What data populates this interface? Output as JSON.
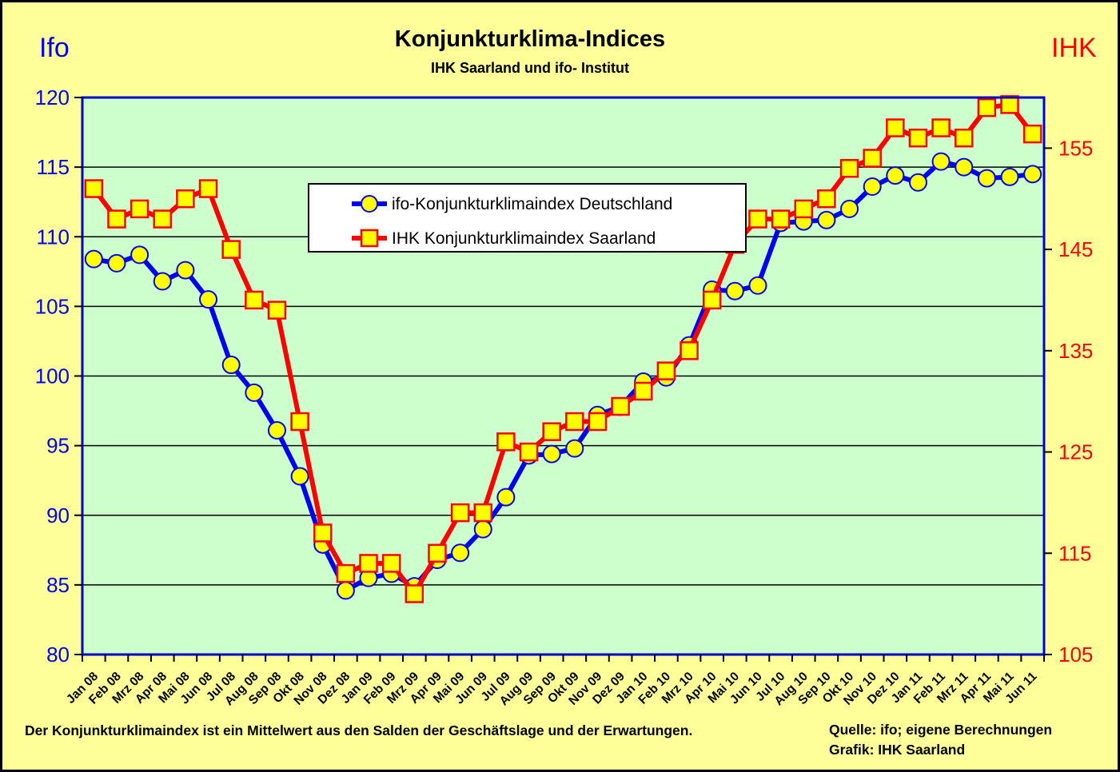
{
  "header": {
    "title": "Konjunkturklima-Indices",
    "subtitle": "IHK Saarland und ifo- Institut",
    "left_axis_title": "Ifo",
    "right_axis_title": "IHK"
  },
  "footer": {
    "note": "Der Konjunkturklimaindex ist ein Mittelwert aus den Salden der Geschäftslage und der Erwartungen.",
    "source_line1": "Quelle: ifo; eigene Berechnungen",
    "source_line2": "Grafik: IHK Saarland"
  },
  "colors": {
    "background": "#FFFF99",
    "plot_background": "#CCFFCC",
    "plot_border": "#0000CC",
    "grid": "#000000",
    "ifo_line": "#0000EE",
    "ihk_line": "#FF0000",
    "marker_fill": "#FFFF00",
    "left_axis_text": "#0000EE",
    "right_axis_text": "#FF0000",
    "legend_background": "#FFFFFF"
  },
  "chart_data": {
    "type": "line",
    "title": "Konjunkturklima-Indices",
    "subtitle": "IHK Saarland und ifo- Institut",
    "grid": "horizontal",
    "legend_position": "inside-top-center",
    "categories": [
      "Jan 08",
      "Feb 08",
      "Mrz 08",
      "Apr 08",
      "Mai 08",
      "Jun 08",
      "Jul 08",
      "Aug 08",
      "Sep 08",
      "Okt 08",
      "Nov 08",
      "Dez 08",
      "Jan 09",
      "Feb 09",
      "Mrz 09",
      "Apr 09",
      "Mai 09",
      "Jun 09",
      "Jul 09",
      "Aug 09",
      "Sep 09",
      "Okt 09",
      "Nov 09",
      "Dez 09",
      "Jan 10",
      "Feb 10",
      "Mrz 10",
      "Apr 10",
      "Mai 10",
      "Jun 10",
      "Jul 10",
      "Aug 10",
      "Sep 10",
      "Okt 10",
      "Nov 10",
      "Dez 10",
      "Jan 11",
      "Feb 11",
      "Mrz 11",
      "Apr 11",
      "Mai 11",
      "Jun 11"
    ],
    "left_axis": {
      "label": "Ifo",
      "min": 80,
      "max": 120,
      "ticks": [
        80,
        85,
        90,
        95,
        100,
        105,
        110,
        115,
        120
      ]
    },
    "right_axis": {
      "label": "IHK",
      "min": 105,
      "max": 160,
      "ticks": [
        105,
        115,
        125,
        135,
        145,
        155
      ]
    },
    "series": [
      {
        "name": "ifo-Konjunkturklimaindex Deutschland",
        "axis": "left",
        "color": "#0000EE",
        "marker": "circle",
        "values": [
          108.4,
          108.1,
          108.7,
          106.8,
          107.6,
          105.5,
          100.8,
          98.8,
          96.1,
          92.8,
          87.9,
          84.6,
          85.5,
          85.8,
          84.9,
          86.8,
          87.3,
          89.0,
          91.3,
          94.3,
          94.4,
          94.8,
          97.2,
          97.8,
          99.6,
          99.9,
          102.2,
          106.2,
          106.1,
          106.5,
          111.0,
          111.1,
          111.2,
          112.0,
          113.6,
          114.4,
          113.9,
          115.4,
          115.0,
          114.2,
          114.3,
          114.5
        ]
      },
      {
        "name": "IHK Konjunkturklimaindex Saarland",
        "axis": "right",
        "color": "#FF0000",
        "marker": "square",
        "values": [
          151,
          148,
          149,
          148,
          150,
          151,
          145,
          140,
          139,
          128,
          117,
          113,
          114,
          114,
          111,
          115,
          119,
          119,
          126,
          125,
          127,
          128,
          128,
          129.5,
          131,
          133,
          135,
          140,
          145.5,
          148,
          148,
          149,
          150,
          153,
          154,
          157,
          156,
          157,
          156,
          159,
          159.3,
          156.4
        ]
      }
    ]
  }
}
